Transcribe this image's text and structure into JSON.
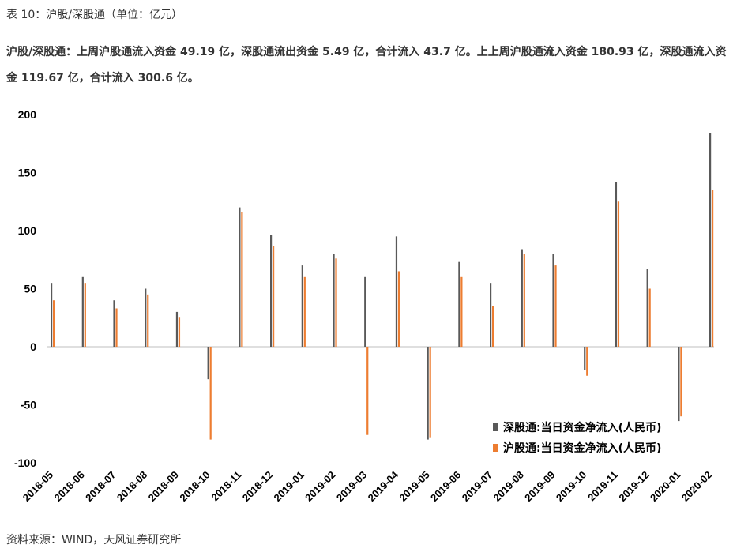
{
  "header": {
    "title": "表 10：沪股/深股通（单位：亿元）",
    "summary": "沪股/深股通：上周沪股通流入资金 49.19 亿，深股通流出资金 5.49 亿，合计流入 43.7 亿。上上周沪股通流入资金 180.93 亿，深股通流入资金 119.67 亿，合计流入 300.6 亿。"
  },
  "footer": {
    "source": "资料来源：WIND，天风证券研究所"
  },
  "colors": {
    "accent_rule": "#e8a55c",
    "shenzhen": "#595959",
    "shanghai": "#ed7d31"
  },
  "chart_data": {
    "type": "bar",
    "title": "",
    "xlabel": "",
    "ylabel": "",
    "ylim": [
      -100,
      200
    ],
    "yticks": [
      200,
      150,
      100,
      50,
      0,
      -50,
      -100
    ],
    "grid": false,
    "legend_position": "bottom-right",
    "categories": [
      "2018-05",
      "2018-06",
      "2018-07",
      "2018-08",
      "2018-09",
      "2018-10",
      "2018-11",
      "2018-12",
      "2019-01",
      "2019-02",
      "2019-03",
      "2019-04",
      "2019-05",
      "2019-06",
      "2019-07",
      "2019-08",
      "2019-09",
      "2019-10",
      "2019-11",
      "2019-12",
      "2020-01",
      "2020-02"
    ],
    "series": [
      {
        "name": "深股通:当日资金净流入(人民币)",
        "color": "#595959",
        "values": [
          55,
          60,
          40,
          50,
          30,
          -28,
          120,
          96,
          70,
          80,
          60,
          95,
          -80,
          73,
          55,
          84,
          80,
          -20,
          142,
          67,
          -64,
          184
        ]
      },
      {
        "name": "沪股通:当日资金净流入(人民币)",
        "color": "#ed7d31",
        "values": [
          40,
          55,
          33,
          45,
          25,
          -80,
          116,
          87,
          60,
          76,
          -76,
          65,
          -78,
          60,
          35,
          80,
          70,
          -25,
          125,
          50,
          -60,
          135
        ]
      }
    ]
  }
}
